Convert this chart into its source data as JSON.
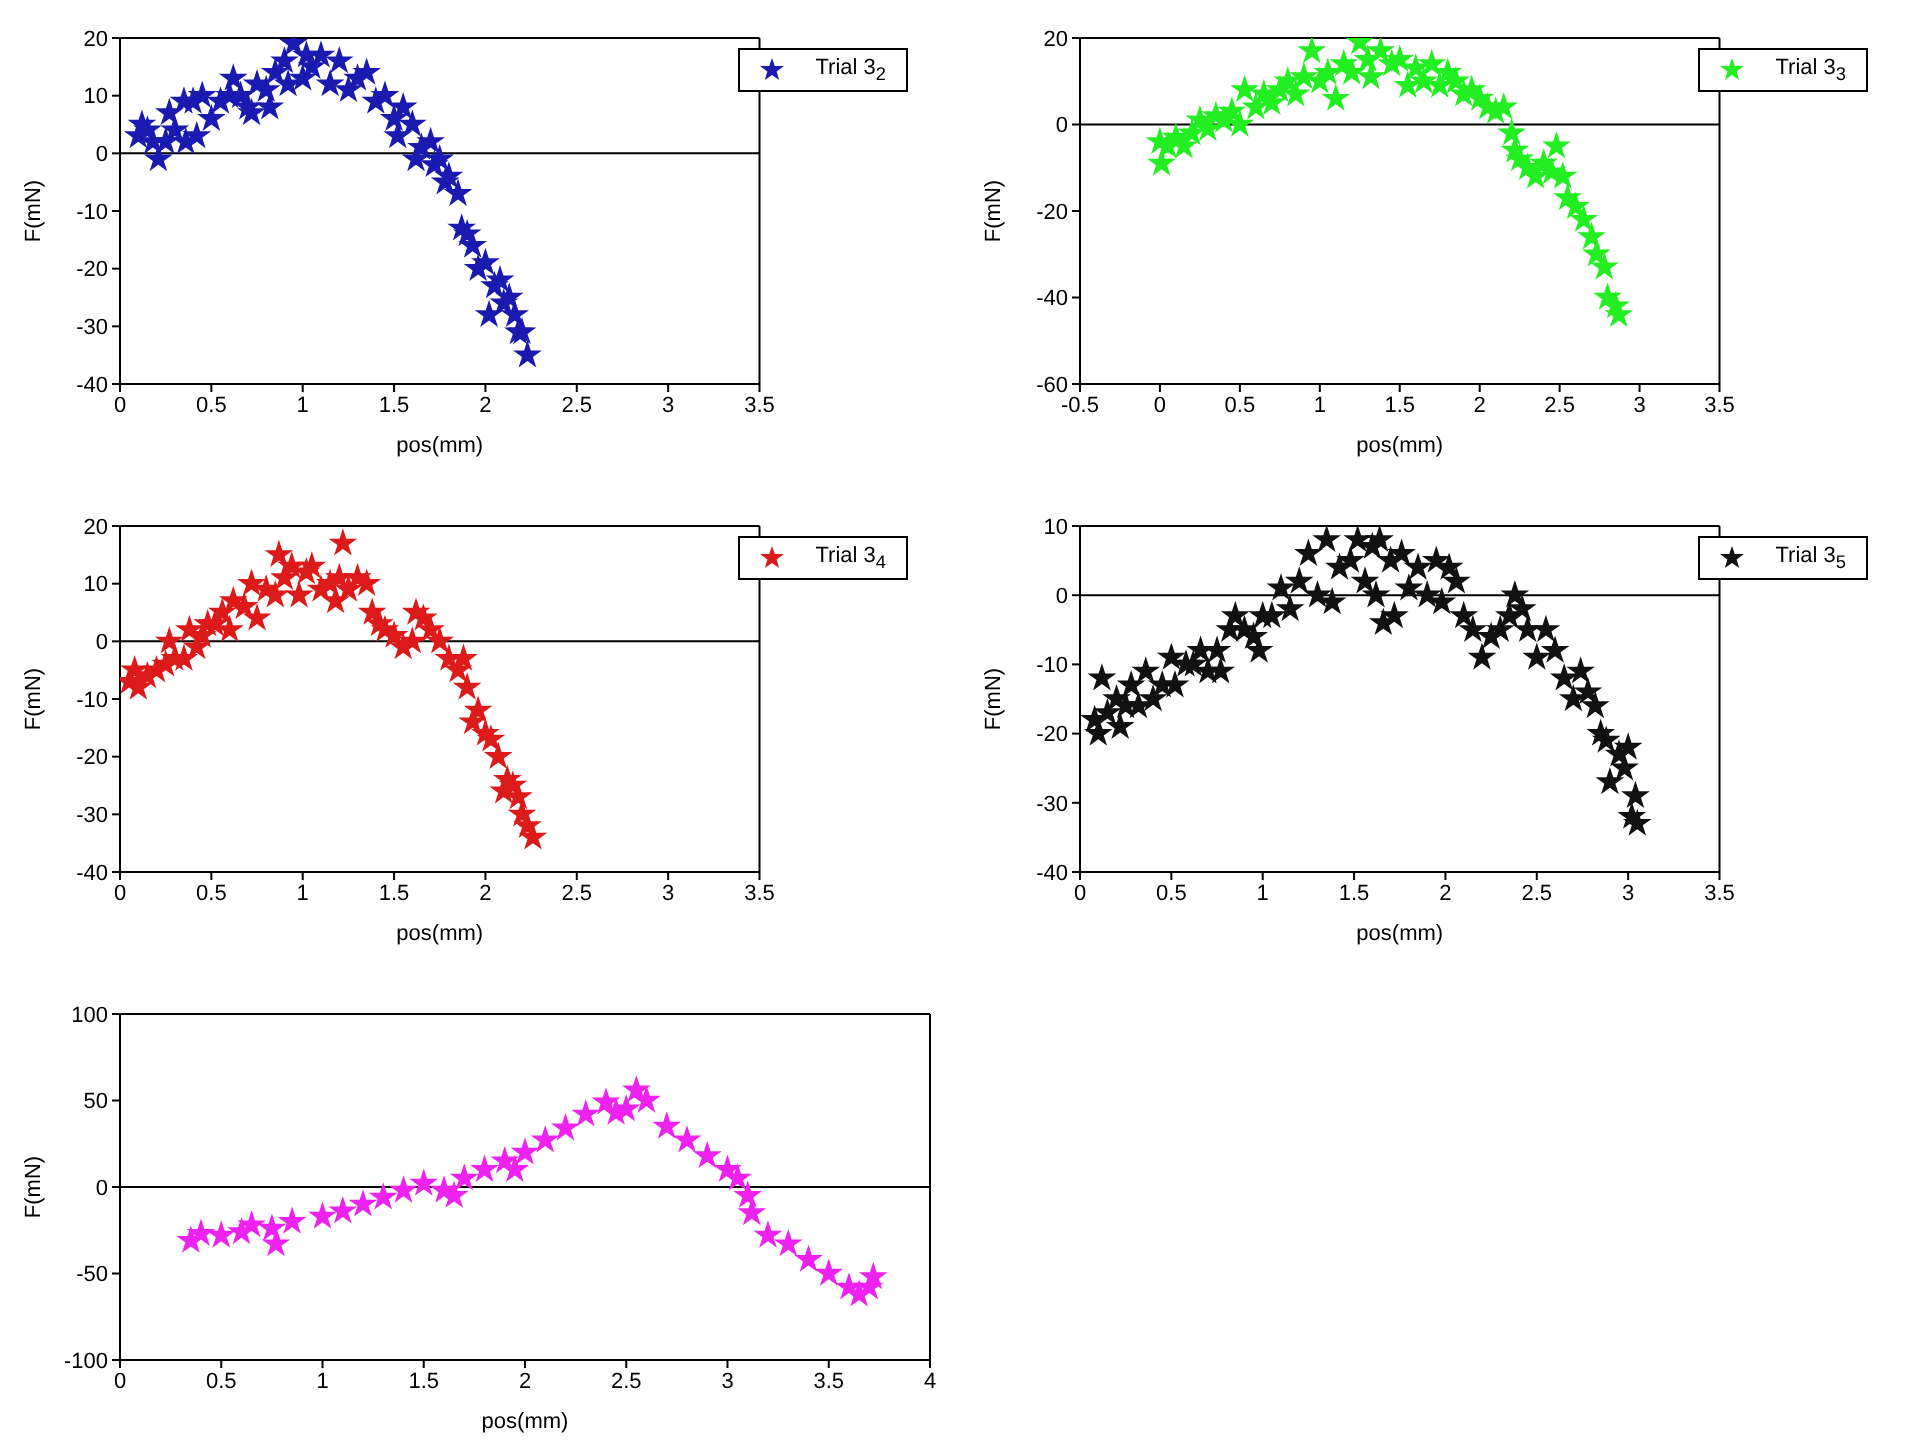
{
  "chart_data": [
    {
      "type": "scatter",
      "xlabel": "pos(mm)",
      "ylabel": "F(mN)",
      "xlim": [
        0,
        3.5
      ],
      "xticks": [
        0,
        0.5,
        1,
        1.5,
        2,
        2.5,
        3,
        3.5
      ],
      "ylim": [
        -40,
        20
      ],
      "yticks": [
        -40,
        -30,
        -20,
        -10,
        0,
        10,
        20
      ],
      "marker": "star",
      "legend": "top right",
      "ref_lines": [
        {
          "axis": "y",
          "value": 0,
          "color": "#000000"
        }
      ],
      "series": [
        {
          "name": "Trial 3$_{2}$",
          "color": "#1a1ab0",
          "x": [
            0.1,
            0.12,
            0.15,
            0.18,
            0.21,
            0.25,
            0.27,
            0.3,
            0.35,
            0.36,
            0.4,
            0.42,
            0.45,
            0.5,
            0.55,
            0.6,
            0.62,
            0.66,
            0.7,
            0.72,
            0.75,
            0.8,
            0.82,
            0.85,
            0.9,
            0.92,
            0.95,
            1.0,
            1.02,
            1.05,
            1.1,
            1.15,
            1.2,
            1.25,
            1.3,
            1.35,
            1.4,
            1.45,
            1.5,
            1.52,
            1.55,
            1.6,
            1.62,
            1.65,
            1.7,
            1.72,
            1.75,
            1.78,
            1.8,
            1.85,
            1.87,
            1.9,
            1.93,
            1.96,
            2.0,
            2.02,
            2.05,
            2.08,
            2.1,
            2.13,
            2.16,
            2.18,
            2.2,
            2.23
          ],
          "values": [
            3,
            5,
            4,
            2,
            -1,
            2,
            7,
            4,
            9,
            2,
            9,
            3,
            10,
            6,
            9,
            10,
            13,
            10,
            8,
            7,
            12,
            11,
            8,
            14,
            16,
            12,
            19,
            13,
            17,
            15,
            17,
            12,
            16,
            11,
            13,
            14,
            9,
            10,
            6,
            3,
            8,
            5,
            -1,
            1,
            2,
            -2,
            -1,
            -5,
            -4,
            -7,
            -13,
            -14,
            -16,
            -20,
            -19,
            -28,
            -23,
            -22,
            -26,
            -25,
            -28,
            -31,
            -31,
            -35
          ]
        }
      ]
    },
    {
      "type": "scatter",
      "xlabel": "pos(mm)",
      "ylabel": "F(mN)",
      "xlim": [
        -0.5,
        3.5
      ],
      "xticks": [
        -0.5,
        0,
        0.5,
        1,
        1.5,
        2,
        2.5,
        3,
        3.5
      ],
      "ylim": [
        -60,
        20
      ],
      "yticks": [
        -60,
        -40,
        -20,
        0,
        20
      ],
      "marker": "star",
      "legend": "top right",
      "ref_lines": [
        {
          "axis": "y",
          "value": 0,
          "color": "#000000"
        }
      ],
      "series": [
        {
          "name": "Trial 3$_{3}$",
          "color": "#22ee22",
          "x": [
            0,
            0.01,
            0.05,
            0.1,
            0.15,
            0.2,
            0.25,
            0.3,
            0.35,
            0.4,
            0.45,
            0.5,
            0.53,
            0.6,
            0.65,
            0.7,
            0.75,
            0.8,
            0.85,
            0.9,
            0.95,
            1.0,
            1.05,
            1.1,
            1.15,
            1.2,
            1.25,
            1.3,
            1.32,
            1.38,
            1.45,
            1.5,
            1.55,
            1.6,
            1.65,
            1.7,
            1.75,
            1.8,
            1.85,
            1.9,
            1.95,
            2.0,
            2.05,
            2.1,
            2.15,
            2.2,
            2.22,
            2.25,
            2.3,
            2.35,
            2.4,
            2.45,
            2.48,
            2.52,
            2.55,
            2.6,
            2.65,
            2.7,
            2.73,
            2.78,
            2.8,
            2.85,
            2.87
          ],
          "values": [
            -4,
            -9,
            -5,
            -3,
            -5,
            -2,
            1,
            -1,
            2,
            1,
            3,
            0,
            8,
            4,
            7,
            5,
            8,
            10,
            7,
            11,
            17,
            10,
            12,
            6,
            14,
            12,
            19,
            15,
            11,
            17,
            14,
            15,
            9,
            13,
            10,
            14,
            9,
            12,
            10,
            7,
            8,
            6,
            4,
            3,
            4,
            -2,
            -6,
            -8,
            -10,
            -12,
            -9,
            -11,
            -5,
            -12,
            -17,
            -19,
            -22,
            -26,
            -30,
            -33,
            -40,
            -42,
            -44
          ]
        }
      ]
    },
    {
      "type": "scatter",
      "xlabel": "pos(mm)",
      "ylabel": "F(mN)",
      "xlim": [
        0,
        3.5
      ],
      "xticks": [
        0,
        0.5,
        1,
        1.5,
        2,
        2.5,
        3,
        3.5
      ],
      "ylim": [
        -40,
        20
      ],
      "yticks": [
        -40,
        -30,
        -20,
        -10,
        0,
        10,
        20
      ],
      "marker": "star",
      "legend": "top right",
      "ref_lines": [
        {
          "axis": "y",
          "value": 0,
          "color": "#000000"
        }
      ],
      "series": [
        {
          "name": "Trial 3$_{4}$",
          "color": "#dd1a1a",
          "x": [
            0.05,
            0.08,
            0.1,
            0.15,
            0.2,
            0.25,
            0.27,
            0.3,
            0.35,
            0.38,
            0.42,
            0.45,
            0.48,
            0.52,
            0.56,
            0.6,
            0.62,
            0.68,
            0.72,
            0.75,
            0.8,
            0.85,
            0.87,
            0.9,
            0.94,
            0.98,
            1.02,
            1.05,
            1.1,
            1.15,
            1.18,
            1.2,
            1.22,
            1.25,
            1.3,
            1.35,
            1.38,
            1.42,
            1.45,
            1.5,
            1.55,
            1.6,
            1.62,
            1.66,
            1.7,
            1.75,
            1.8,
            1.85,
            1.88,
            1.9,
            1.93,
            1.96,
            2.0,
            2.03,
            2.07,
            2.1,
            2.12,
            2.15,
            2.18,
            2.2,
            2.23,
            2.26
          ],
          "values": [
            -7,
            -5,
            -8,
            -6,
            -5,
            -4,
            0,
            -3,
            -3,
            2,
            -1,
            1,
            3,
            3,
            5,
            2,
            7,
            6,
            10,
            4,
            9,
            8,
            15,
            11,
            13,
            8,
            12,
            13,
            9,
            10,
            7,
            11,
            17,
            9,
            11,
            10,
            5,
            3,
            2,
            1,
            -1,
            0,
            5,
            4,
            2,
            0,
            -3,
            -5,
            -3,
            -8,
            -14,
            -12,
            -16,
            -17,
            -20,
            -26,
            -24,
            -25,
            -27,
            -30,
            -32,
            -34
          ]
        }
      ]
    },
    {
      "type": "scatter",
      "xlabel": "pos(mm)",
      "ylabel": "F(mN)",
      "xlim": [
        0,
        3.5
      ],
      "xticks": [
        0,
        0.5,
        1,
        1.5,
        2,
        2.5,
        3,
        3.5
      ],
      "ylim": [
        -40,
        10
      ],
      "yticks": [
        -40,
        -30,
        -20,
        -10,
        0,
        10
      ],
      "marker": "star",
      "legend": "top right",
      "ref_lines": [
        {
          "axis": "y",
          "value": 0,
          "color": "#000000"
        }
      ],
      "series": [
        {
          "name": "Trial 3$_{5}$",
          "color": "#111111",
          "x": [
            0.08,
            0.1,
            0.12,
            0.15,
            0.2,
            0.22,
            0.25,
            0.28,
            0.32,
            0.36,
            0.4,
            0.45,
            0.5,
            0.52,
            0.58,
            0.62,
            0.66,
            0.7,
            0.75,
            0.77,
            0.82,
            0.85,
            0.9,
            0.95,
            0.98,
            1.0,
            1.05,
            1.1,
            1.15,
            1.2,
            1.25,
            1.3,
            1.35,
            1.38,
            1.42,
            1.48,
            1.52,
            1.56,
            1.6,
            1.62,
            1.64,
            1.66,
            1.7,
            1.72,
            1.76,
            1.8,
            1.85,
            1.9,
            1.95,
            1.98,
            2.02,
            2.06,
            2.1,
            2.15,
            2.2,
            2.25,
            2.3,
            2.35,
            2.38,
            2.42,
            2.45,
            2.5,
            2.55,
            2.6,
            2.65,
            2.7,
            2.74,
            2.78,
            2.82,
            2.85,
            2.88,
            2.9,
            2.95,
            2.98,
            3.0,
            3.02,
            3.04,
            3.05
          ],
          "values": [
            -18,
            -20,
            -12,
            -17,
            -15,
            -19,
            -16,
            -13,
            -16,
            -11,
            -15,
            -13,
            -9,
            -13,
            -10,
            -10,
            -8,
            -11,
            -8,
            -11,
            -5,
            -3,
            -5,
            -6,
            -8,
            -3,
            -3,
            1,
            -2,
            2,
            6,
            0,
            8,
            -1,
            4,
            5,
            8,
            2,
            7,
            0,
            8,
            -4,
            5,
            -3,
            6,
            1,
            4,
            0,
            5,
            -1,
            4,
            2,
            -3,
            -5,
            -9,
            -6,
            -5,
            -3,
            0,
            -2,
            -5,
            -9,
            -5,
            -8,
            -12,
            -15,
            -11,
            -14,
            -16,
            -20,
            -21,
            -27,
            -23,
            -25,
            -22,
            -32,
            -29,
            -33
          ]
        }
      ]
    },
    {
      "type": "scatter",
      "xlabel": "pos(mm)",
      "ylabel": "F(mN)",
      "xlim": [
        0,
        4
      ],
      "xticks": [
        0,
        0.5,
        1,
        1.5,
        2,
        2.5,
        3,
        3.5,
        4
      ],
      "ylim": [
        -100,
        100
      ],
      "yticks": [
        -100,
        -50,
        0,
        50,
        100
      ],
      "marker": "star",
      "ref_lines": [
        {
          "axis": "y",
          "value": 0,
          "color": "#000000"
        }
      ],
      "series": [
        {
          "color": "#ee22ee",
          "x": [
            0.35,
            0.4,
            0.5,
            0.6,
            0.65,
            0.75,
            0.77,
            0.85,
            1.0,
            1.1,
            1.2,
            1.3,
            1.4,
            1.5,
            1.6,
            1.65,
            1.7,
            1.8,
            1.9,
            1.95,
            2.0,
            2.1,
            2.2,
            2.3,
            2.4,
            2.45,
            2.5,
            2.55,
            2.6,
            2.7,
            2.8,
            2.9,
            3.0,
            3.05,
            3.1,
            3.12,
            3.2,
            3.3,
            3.4,
            3.5,
            3.6,
            3.65,
            3.7,
            3.72
          ],
          "values": [
            -31,
            -27,
            -28,
            -26,
            -22,
            -24,
            -33,
            -20,
            -17,
            -14,
            -10,
            -6,
            -2,
            2,
            -2,
            -5,
            5,
            10,
            15,
            10,
            20,
            27,
            34,
            42,
            49,
            43,
            45,
            56,
            50,
            35,
            27,
            18,
            10,
            5,
            -5,
            -15,
            -28,
            -33,
            -42,
            -50,
            -58,
            -62,
            -58,
            -52
          ]
        }
      ]
    }
  ]
}
